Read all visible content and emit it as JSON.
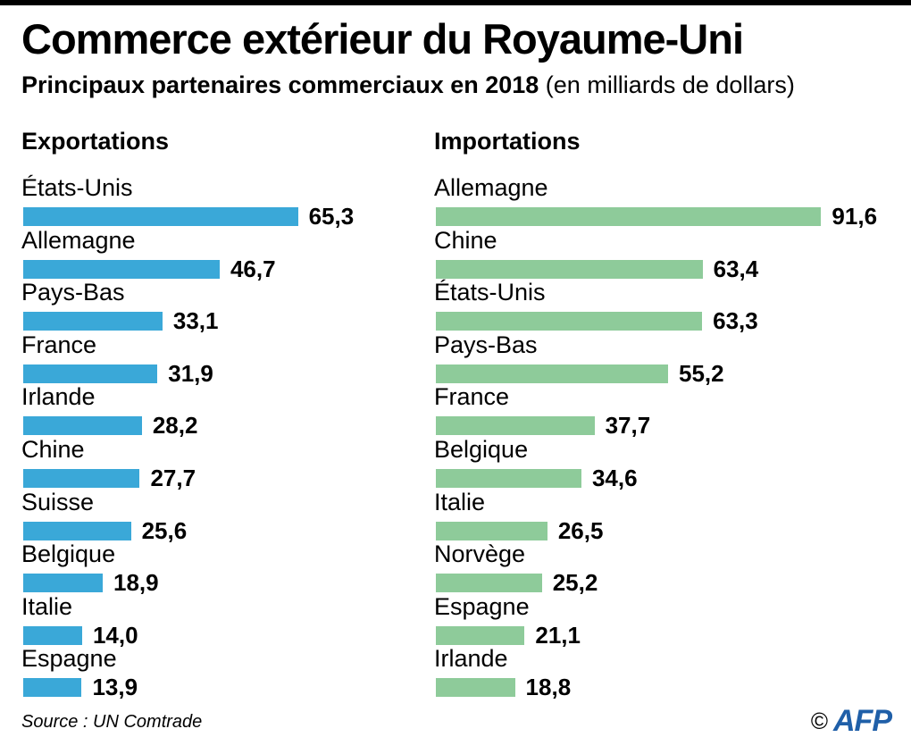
{
  "header": {
    "title": "Commerce extérieur du Royaume-Uni",
    "subtitle_bold": "Principaux partenaires commerciaux en 2018",
    "subtitle_rest": " (en milliards de dollars)"
  },
  "colors": {
    "exports": "#3aa8d8",
    "imports": "#8ecb9a"
  },
  "chart_data": [
    {
      "type": "bar",
      "orientation": "horizontal",
      "title": "Exportations",
      "categories": [
        "États-Unis",
        "Allemagne",
        "Pays-Bas",
        "France",
        "Irlande",
        "Chine",
        "Suisse",
        "Belgique",
        "Italie",
        "Espagne"
      ],
      "values": [
        65.3,
        46.7,
        33.1,
        31.9,
        28.2,
        27.7,
        25.6,
        18.9,
        14.0,
        13.9
      ],
      "value_labels": [
        "65,3",
        "46,7",
        "33,1",
        "31,9",
        "28,2",
        "27,7",
        "25,6",
        "18,9",
        "14,0",
        "13,9"
      ],
      "unit": "milliards de dollars"
    },
    {
      "type": "bar",
      "orientation": "horizontal",
      "title": "Importations",
      "categories": [
        "Allemagne",
        "Chine",
        "États-Unis",
        "Pays-Bas",
        "France",
        "Belgique",
        "Italie",
        "Norvège",
        "Espagne",
        "Irlande"
      ],
      "values": [
        91.6,
        63.4,
        63.3,
        55.2,
        37.7,
        34.6,
        26.5,
        25.2,
        21.1,
        18.8
      ],
      "value_labels": [
        "91,6",
        "63,4",
        "63,3",
        "55,2",
        "37,7",
        "34,6",
        "26,5",
        "25,2",
        "21,1",
        "18,8"
      ],
      "unit": "milliards de dollars"
    }
  ],
  "footer": {
    "source": "Source : UN Comtrade",
    "copyright": "©",
    "agency": "AFP"
  }
}
